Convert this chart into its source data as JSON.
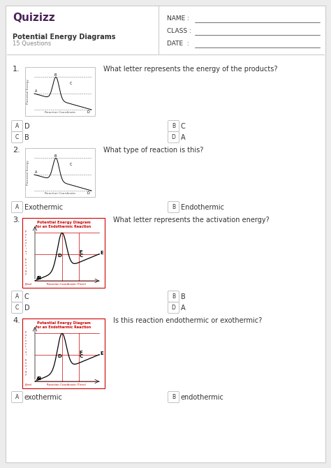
{
  "bg_color": "#ececec",
  "card_color": "#ffffff",
  "title": "Quizizz",
  "subtitle": "Potential Energy Diagrams",
  "subtitle2": "15 Questions",
  "name_label": "NAME :",
  "class_label": "CLASS :",
  "date_label": "DATE  :",
  "q1_text": "What letter represents the energy of the products?",
  "q2_text": "What type of reaction is this?",
  "q3_text": "What letter represents the activation energy?",
  "q4_text": "Is this reaction endothermic or exothermic?",
  "q1_answers": [
    "D",
    "C",
    "B",
    "A"
  ],
  "q2_answers": [
    "Exothermic",
    "Endothermic"
  ],
  "q3_answers": [
    "C",
    "B",
    "D",
    "A"
  ],
  "q4_answers": [
    "exothermic",
    "endothermic"
  ],
  "answer_letters": [
    "A",
    "B",
    "C",
    "D"
  ],
  "quizizz_color": "#4a235a",
  "text_color": "#333333",
  "gray_color": "#888888",
  "border_color": "#cccccc",
  "red_color": "#cc0000",
  "diagram3_title1": "Potential Energy Diagram",
  "diagram3_title2": "for an Endothermic Reaction",
  "diagram4_title1": "Potential Energy Diagram",
  "diagram4_title2": "for an Endothermic Reaction"
}
